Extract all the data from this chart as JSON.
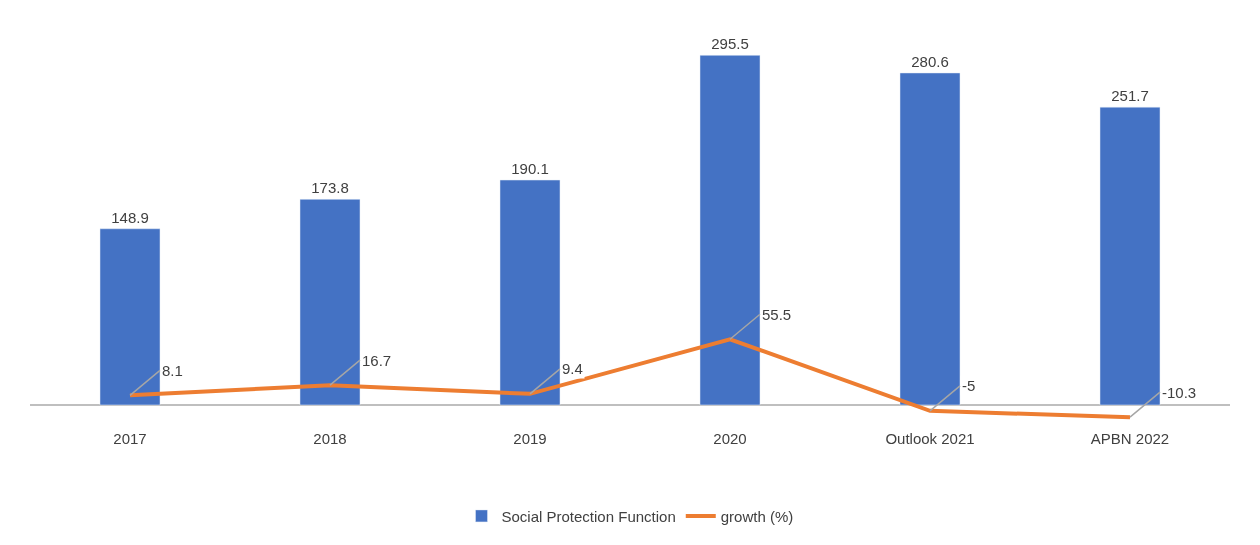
{
  "chart_data": {
    "type": "bar",
    "categories": [
      "2017",
      "2018",
      "2019",
      "2020",
      "Outlook 2021",
      "APBN 2022"
    ],
    "series": [
      {
        "name": "Social Protection Function",
        "color": "#4472c4",
        "values": [
          148.9,
          173.8,
          190.1,
          295.5,
          280.6,
          251.7
        ]
      },
      {
        "name": "growth (%)",
        "type": "line",
        "color": "#ed7d31",
        "values": [
          8.1,
          16.7,
          9.4,
          55.5,
          -5,
          -10.3
        ]
      }
    ],
    "data_labels": true,
    "legend": "bottom",
    "tick_labels": "x",
    "marker": "none",
    "line_style": "solid"
  }
}
